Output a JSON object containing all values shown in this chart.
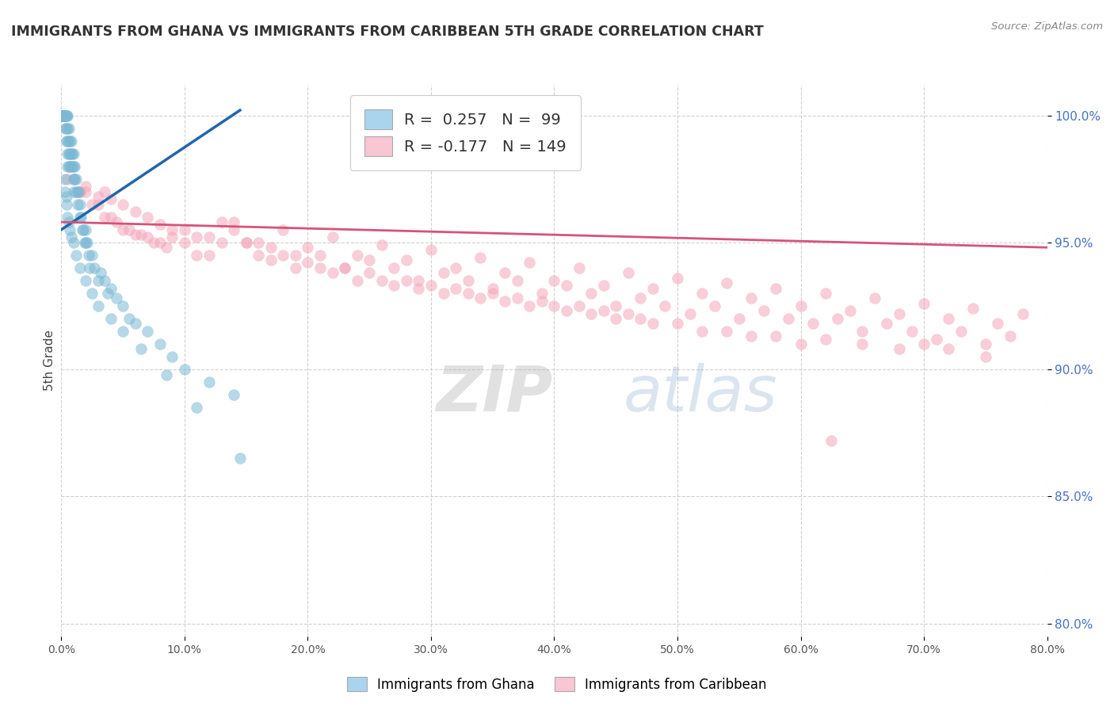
{
  "title": "IMMIGRANTS FROM GHANA VS IMMIGRANTS FROM CARIBBEAN 5TH GRADE CORRELATION CHART",
  "source": "Source: ZipAtlas.com",
  "ylabel": "5th Grade",
  "ghana_R": 0.257,
  "ghana_N": 99,
  "carib_R": -0.177,
  "carib_N": 149,
  "ghana_color": "#7bb8d4",
  "carib_color": "#f4a7b9",
  "ghana_line_color": "#2166ac",
  "carib_line_color": "#d6537a",
  "xmin": 0.0,
  "xmax": 80.0,
  "ymin": 79.5,
  "ymax": 101.2,
  "yticks": [
    80.0,
    85.0,
    90.0,
    95.0,
    100.0
  ],
  "xticks": [
    0,
    10,
    20,
    30,
    40,
    50,
    60,
    70,
    80
  ],
  "ghana_x": [
    0.1,
    0.1,
    0.1,
    0.1,
    0.1,
    0.15,
    0.15,
    0.15,
    0.2,
    0.2,
    0.2,
    0.2,
    0.2,
    0.25,
    0.25,
    0.3,
    0.3,
    0.3,
    0.3,
    0.4,
    0.4,
    0.4,
    0.4,
    0.5,
    0.5,
    0.5,
    0.5,
    0.5,
    0.6,
    0.6,
    0.6,
    0.6,
    0.7,
    0.7,
    0.7,
    0.8,
    0.8,
    0.8,
    0.9,
    0.9,
    1.0,
    1.0,
    1.0,
    1.0,
    1.1,
    1.1,
    1.2,
    1.2,
    1.3,
    1.3,
    1.4,
    1.5,
    1.5,
    1.6,
    1.7,
    1.8,
    1.9,
    2.0,
    2.0,
    2.1,
    2.2,
    2.3,
    2.5,
    2.7,
    3.0,
    3.2,
    3.5,
    3.8,
    4.0,
    4.5,
    5.0,
    5.5,
    6.0,
    7.0,
    8.0,
    9.0,
    10.0,
    12.0,
    14.0,
    0.3,
    0.3,
    0.4,
    0.4,
    0.5,
    0.6,
    0.7,
    0.8,
    1.0,
    1.2,
    1.5,
    2.0,
    2.5,
    3.0,
    4.0,
    5.0,
    6.5,
    8.5,
    11.0,
    14.5
  ],
  "ghana_y": [
    100.0,
    100.0,
    100.0,
    100.0,
    100.0,
    100.0,
    100.0,
    100.0,
    100.0,
    100.0,
    100.0,
    100.0,
    100.0,
    100.0,
    100.0,
    100.0,
    100.0,
    100.0,
    99.5,
    100.0,
    100.0,
    99.5,
    99.0,
    100.0,
    99.5,
    99.0,
    98.5,
    98.0,
    99.5,
    99.0,
    98.5,
    98.0,
    99.0,
    98.5,
    98.0,
    99.0,
    98.5,
    98.0,
    98.5,
    98.0,
    98.5,
    98.0,
    97.5,
    97.0,
    98.0,
    97.5,
    97.5,
    97.0,
    97.0,
    96.5,
    97.0,
    96.5,
    96.0,
    96.0,
    95.5,
    95.5,
    95.0,
    95.5,
    95.0,
    95.0,
    94.5,
    94.0,
    94.5,
    94.0,
    93.5,
    93.8,
    93.5,
    93.0,
    93.2,
    92.8,
    92.5,
    92.0,
    91.8,
    91.5,
    91.0,
    90.5,
    90.0,
    89.5,
    89.0,
    97.5,
    97.0,
    96.8,
    96.5,
    96.0,
    95.8,
    95.5,
    95.2,
    95.0,
    94.5,
    94.0,
    93.5,
    93.0,
    92.5,
    92.0,
    91.5,
    90.8,
    89.8,
    88.5,
    86.5
  ],
  "carib_x": [
    0.5,
    1.0,
    1.5,
    2.0,
    2.5,
    3.0,
    3.5,
    4.0,
    4.5,
    5.0,
    5.5,
    6.0,
    6.5,
    7.0,
    7.5,
    8.0,
    8.5,
    9.0,
    10.0,
    11.0,
    12.0,
    13.0,
    14.0,
    15.0,
    16.0,
    17.0,
    18.0,
    19.0,
    20.0,
    21.0,
    22.0,
    23.0,
    24.0,
    25.0,
    26.0,
    27.0,
    28.0,
    29.0,
    30.0,
    31.0,
    32.0,
    33.0,
    34.0,
    35.0,
    36.0,
    37.0,
    38.0,
    39.0,
    40.0,
    41.0,
    42.0,
    43.0,
    44.0,
    45.0,
    46.0,
    47.0,
    48.0,
    50.0,
    52.0,
    54.0,
    56.0,
    58.0,
    60.0,
    62.0,
    65.0,
    68.0,
    70.0,
    72.0,
    75.0,
    62.5,
    1.5,
    3.0,
    5.0,
    7.0,
    9.0,
    11.0,
    13.0,
    15.0,
    17.0,
    19.0,
    21.0,
    23.0,
    25.0,
    27.0,
    29.0,
    31.0,
    33.0,
    35.0,
    37.0,
    39.0,
    41.0,
    43.0,
    45.0,
    47.0,
    49.0,
    51.0,
    53.0,
    55.0,
    57.0,
    59.0,
    61.0,
    63.0,
    65.0,
    67.0,
    69.0,
    71.0,
    73.0,
    75.0,
    77.0,
    2.0,
    4.0,
    6.0,
    8.0,
    10.0,
    12.0,
    14.0,
    16.0,
    18.0,
    20.0,
    22.0,
    24.0,
    26.0,
    28.0,
    30.0,
    32.0,
    34.0,
    36.0,
    38.0,
    40.0,
    42.0,
    44.0,
    46.0,
    48.0,
    50.0,
    52.0,
    54.0,
    56.0,
    58.0,
    60.0,
    62.0,
    64.0,
    66.0,
    68.0,
    70.0,
    72.0,
    74.0,
    76.0,
    78.0,
    3.5
  ],
  "carib_y": [
    97.5,
    97.5,
    97.0,
    97.0,
    96.5,
    96.5,
    96.0,
    96.0,
    95.8,
    95.5,
    95.5,
    95.3,
    95.3,
    95.2,
    95.0,
    95.0,
    94.8,
    95.2,
    95.0,
    94.5,
    94.5,
    95.0,
    95.5,
    95.0,
    94.5,
    94.3,
    94.5,
    94.0,
    94.2,
    94.0,
    93.8,
    94.0,
    93.5,
    93.8,
    93.5,
    93.3,
    93.5,
    93.2,
    93.3,
    93.0,
    93.2,
    93.0,
    92.8,
    93.0,
    92.7,
    92.8,
    92.5,
    92.7,
    92.5,
    92.3,
    92.5,
    92.2,
    92.3,
    92.0,
    92.2,
    92.0,
    91.8,
    91.8,
    91.5,
    91.5,
    91.3,
    91.3,
    91.0,
    91.2,
    91.0,
    90.8,
    91.0,
    90.8,
    90.5,
    87.2,
    97.0,
    96.8,
    96.5,
    96.0,
    95.5,
    95.2,
    95.8,
    95.0,
    94.8,
    94.5,
    94.5,
    94.0,
    94.3,
    94.0,
    93.5,
    93.8,
    93.5,
    93.2,
    93.5,
    93.0,
    93.3,
    93.0,
    92.5,
    92.8,
    92.5,
    92.2,
    92.5,
    92.0,
    92.3,
    92.0,
    91.8,
    92.0,
    91.5,
    91.8,
    91.5,
    91.2,
    91.5,
    91.0,
    91.3,
    97.2,
    96.7,
    96.2,
    95.7,
    95.5,
    95.2,
    95.8,
    95.0,
    95.5,
    94.8,
    95.2,
    94.5,
    94.9,
    94.3,
    94.7,
    94.0,
    94.4,
    93.8,
    94.2,
    93.5,
    94.0,
    93.3,
    93.8,
    93.2,
    93.6,
    93.0,
    93.4,
    92.8,
    93.2,
    92.5,
    93.0,
    92.3,
    92.8,
    92.2,
    92.6,
    92.0,
    92.4,
    91.8,
    92.2,
    97.0
  ],
  "ghana_trend_x0": 0.0,
  "ghana_trend_y0": 95.5,
  "ghana_trend_x1": 14.5,
  "ghana_trend_y1": 100.2,
  "carib_trend_x0": 0.0,
  "carib_trend_y0": 95.8,
  "carib_trend_x1": 80.0,
  "carib_trend_y1": 94.8
}
